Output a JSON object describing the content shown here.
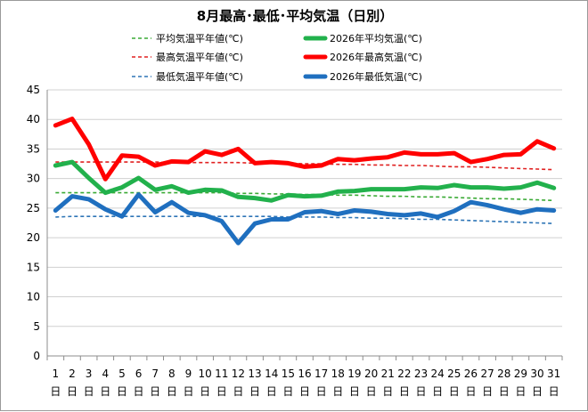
{
  "chart_data": {
    "type": "line",
    "title": "8月最高･最低･平均気温（日別）",
    "xlabel": "",
    "ylabel": "",
    "ylim": [
      0,
      45
    ],
    "yticks": [
      0,
      5,
      10,
      15,
      20,
      25,
      30,
      35,
      40,
      45
    ],
    "grid": "horizontal",
    "legend_position": "top",
    "day_suffix": "日",
    "categories": [
      "1",
      "2",
      "3",
      "4",
      "5",
      "6",
      "7",
      "8",
      "9",
      "10",
      "11",
      "12",
      "13",
      "14",
      "15",
      "16",
      "17",
      "18",
      "19",
      "20",
      "21",
      "22",
      "23",
      "24",
      "25",
      "26",
      "27",
      "28",
      "29",
      "30",
      "31"
    ],
    "series": [
      {
        "name": "平均気温平年値(℃)",
        "style": "dashed",
        "color": "#3aaa35",
        "values": [
          27.6,
          27.6,
          27.6,
          27.6,
          27.6,
          27.6,
          27.6,
          27.6,
          27.6,
          27.6,
          27.6,
          27.5,
          27.5,
          27.4,
          27.4,
          27.3,
          27.3,
          27.2,
          27.2,
          27.1,
          27.0,
          27.0,
          26.9,
          26.9,
          26.8,
          26.7,
          26.6,
          26.6,
          26.5,
          26.4,
          26.3
        ]
      },
      {
        "name": "2026年平均気温(℃)",
        "style": "solid",
        "color": "#22b14c",
        "values": [
          32.2,
          32.8,
          30.1,
          27.6,
          28.5,
          30.1,
          28.1,
          28.7,
          27.6,
          28.1,
          28.0,
          26.9,
          26.7,
          26.3,
          27.2,
          27.0,
          27.1,
          27.8,
          27.9,
          28.2,
          28.2,
          28.2,
          28.5,
          28.4,
          28.9,
          28.5,
          28.5,
          28.3,
          28.5,
          29.3,
          28.4
        ]
      },
      {
        "name": "最高気温平年値(℃)",
        "style": "dashed",
        "color": "#e02020",
        "values": [
          32.8,
          32.8,
          32.8,
          32.8,
          32.8,
          32.8,
          32.8,
          32.7,
          32.7,
          32.7,
          32.7,
          32.7,
          32.6,
          32.6,
          32.6,
          32.5,
          32.5,
          32.4,
          32.4,
          32.3,
          32.3,
          32.2,
          32.2,
          32.1,
          32.0,
          32.0,
          31.9,
          31.8,
          31.7,
          31.6,
          31.5
        ]
      },
      {
        "name": "2026年最高気温(℃)",
        "style": "solid",
        "color": "#ff0000",
        "values": [
          39.0,
          40.1,
          35.8,
          29.9,
          33.9,
          33.7,
          32.2,
          32.9,
          32.8,
          34.6,
          34.0,
          35.0,
          32.6,
          32.8,
          32.6,
          32.0,
          32.2,
          33.3,
          33.1,
          33.4,
          33.6,
          34.4,
          34.1,
          34.1,
          34.3,
          32.8,
          33.3,
          34.0,
          34.1,
          36.3,
          35.1
        ]
      },
      {
        "name": "最低気温平年値(℃)",
        "style": "dashed",
        "color": "#2e75b6",
        "values": [
          23.5,
          23.6,
          23.6,
          23.6,
          23.6,
          23.6,
          23.6,
          23.6,
          23.6,
          23.6,
          23.6,
          23.6,
          23.6,
          23.6,
          23.5,
          23.5,
          23.5,
          23.4,
          23.4,
          23.3,
          23.3,
          23.2,
          23.1,
          23.1,
          23.0,
          22.9,
          22.8,
          22.7,
          22.6,
          22.5,
          22.4
        ]
      },
      {
        "name": "2026年最低気温(℃)",
        "style": "solid",
        "color": "#1f6fbf",
        "values": [
          24.6,
          27.0,
          26.5,
          24.8,
          23.6,
          27.3,
          24.3,
          26.0,
          24.2,
          23.8,
          22.8,
          19.1,
          22.4,
          23.1,
          23.1,
          24.3,
          24.5,
          24.0,
          24.6,
          24.4,
          24.0,
          23.8,
          24.1,
          23.5,
          24.5,
          26.0,
          25.5,
          24.8,
          24.2,
          24.8,
          24.6
        ]
      }
    ]
  }
}
